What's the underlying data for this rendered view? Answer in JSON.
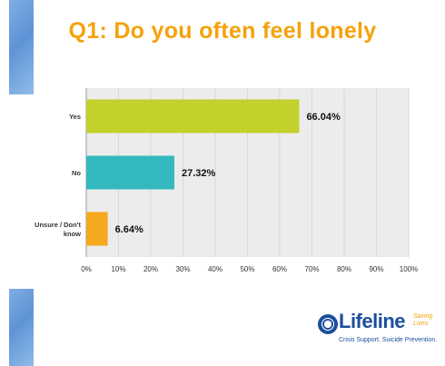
{
  "title": "Q1: Do you often feel lonely",
  "chart_data": {
    "type": "bar",
    "orientation": "horizontal",
    "categories": [
      "Yes",
      "No",
      "Unsure / Don't know"
    ],
    "category_lines": [
      [
        "Yes"
      ],
      [
        "No"
      ],
      [
        "Unsure / Don't",
        "know"
      ]
    ],
    "values": [
      66.04,
      27.32,
      6.64
    ],
    "value_labels": [
      "66.04%",
      "27.32%",
      "6.64%"
    ],
    "colors": [
      "#c4d02c",
      "#33b9bd",
      "#f6a81e"
    ],
    "xlim": [
      0,
      100
    ],
    "ticks": [
      0,
      10,
      20,
      30,
      40,
      50,
      60,
      70,
      80,
      90,
      100
    ],
    "tick_labels": [
      "0%",
      "10%",
      "20%",
      "30%",
      "40%",
      "50%",
      "60%",
      "70%",
      "80%",
      "90%",
      "100%"
    ],
    "grid": true,
    "plot_background": "#ececec",
    "title": "",
    "xlabel": "",
    "ylabel": ""
  },
  "logo": {
    "word": "Lifeline",
    "tagline": "Saving Lives",
    "subtitle": "Crisis Support. Suicide Prevention.",
    "brand_color": "#1b4e9c",
    "accent_color": "#f5a20b"
  }
}
